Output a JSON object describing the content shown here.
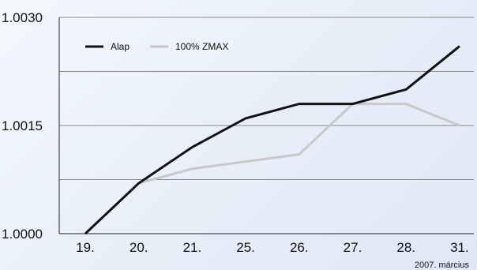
{
  "chart_data": {
    "type": "line",
    "categories": [
      "19.",
      "20.",
      "21.",
      "25.",
      "26.",
      "27.",
      "28.",
      "31."
    ],
    "series": [
      {
        "name": "Alap",
        "values": [
          1.0,
          1.0007,
          1.0012,
          1.0016,
          1.0018,
          1.0018,
          1.002,
          1.0026
        ],
        "color": "#111111"
      },
      {
        "name": "100% ZMAX",
        "values": [
          1.0,
          1.0007,
          1.0009,
          1.001,
          1.0011,
          1.0018,
          1.0018,
          1.0015
        ],
        "color": "#c8c8c8"
      }
    ],
    "ylim": [
      1.0,
      1.003
    ],
    "yticks": [
      "1.0000",
      "1.0015",
      "1.0030"
    ],
    "grid_values": [
      1.00075,
      1.0015,
      1.00225,
      1.003
    ],
    "note": "2007. március",
    "legend_position": "top-left",
    "grid": true
  }
}
